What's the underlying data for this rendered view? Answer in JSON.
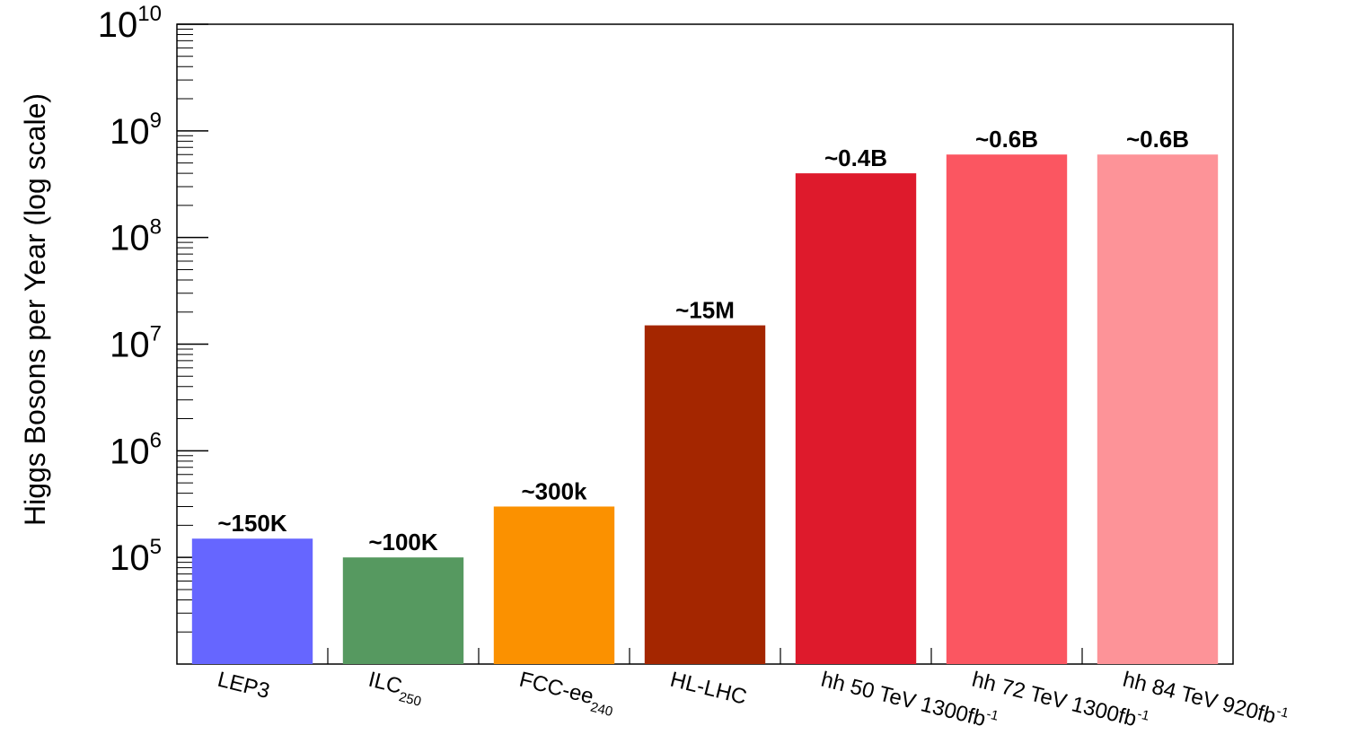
{
  "chart_data": {
    "type": "bar",
    "ylabel": "Higgs Bosons per Year (log scale)",
    "yscale": "log",
    "ylim": [
      10000,
      10000000000
    ],
    "yticks": [
      {
        "value": 100000,
        "base": "10",
        "exp": "5"
      },
      {
        "value": 1000000,
        "base": "10",
        "exp": "6"
      },
      {
        "value": 10000000,
        "base": "10",
        "exp": "7"
      },
      {
        "value": 100000000,
        "base": "10",
        "exp": "8"
      },
      {
        "value": 1000000000,
        "base": "10",
        "exp": "9"
      },
      {
        "value": 10000000000,
        "base": "10",
        "exp": "10"
      }
    ],
    "categories": [
      {
        "main": "LEP3",
        "sub": "",
        "suffix": ""
      },
      {
        "main": "ILC",
        "sub": "250",
        "suffix": ""
      },
      {
        "main": "FCC-ee",
        "sub": "240",
        "suffix": ""
      },
      {
        "main": "HL-LHC",
        "sub": "",
        "suffix": ""
      },
      {
        "main": "hh 50 TeV 1300fb",
        "sub": "",
        "sup": "-1"
      },
      {
        "main": "hh 72 TeV 1300fb",
        "sub": "",
        "sup": "-1"
      },
      {
        "main": "hh 84 TeV 920fb",
        "sub": "",
        "sup": "-1"
      }
    ],
    "values": [
      150000,
      100000,
      300000,
      15000000,
      400000000,
      600000000,
      600000000
    ],
    "value_labels": [
      "~150K",
      "~100K",
      "~300k",
      "~15M",
      "~0.4B",
      "~0.6B",
      "~0.6B"
    ],
    "colors": [
      "#6666ff",
      "#569960",
      "#fb9100",
      "#a42600",
      "#de1a2c",
      "#fb5661",
      "#fd9398"
    ],
    "grid": false,
    "legend": "none"
  }
}
